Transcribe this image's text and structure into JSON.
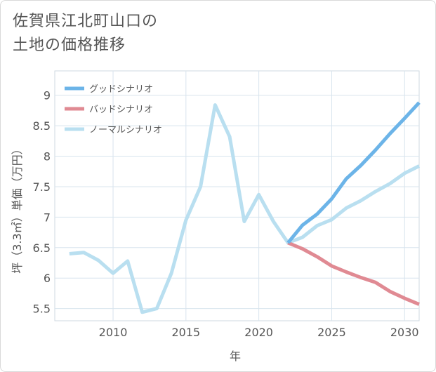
{
  "title": "佐賀県江北町山口の\n土地の価格推移",
  "chart_data": {
    "type": "line",
    "xlabel": "年",
    "ylabel": "坪（3.3㎡）単価（万円）",
    "xlim": [
      2006,
      2031
    ],
    "ylim": [
      5.3,
      9.4
    ],
    "xticks": [
      2010,
      2015,
      2020,
      2025,
      2030
    ],
    "yticks": [
      5.5,
      6,
      6.5,
      7,
      7.5,
      8,
      8.5,
      9
    ],
    "grid": true,
    "legend_position": "top-left",
    "series": [
      {
        "name": "グッドシナリオ",
        "color": "#6cb4e8",
        "points": [
          [
            2022,
            6.58
          ],
          [
            2023,
            6.87
          ],
          [
            2024,
            7.05
          ],
          [
            2025,
            7.3
          ],
          [
            2026,
            7.63
          ],
          [
            2027,
            7.85
          ],
          [
            2028,
            8.1
          ],
          [
            2029,
            8.37
          ],
          [
            2030,
            8.62
          ],
          [
            2031,
            8.88
          ]
        ]
      },
      {
        "name": "バッドシナリオ",
        "color": "#e08a93",
        "points": [
          [
            2022,
            6.58
          ],
          [
            2023,
            6.48
          ],
          [
            2024,
            6.35
          ],
          [
            2025,
            6.2
          ],
          [
            2026,
            6.1
          ],
          [
            2027,
            6.01
          ],
          [
            2028,
            5.93
          ],
          [
            2029,
            5.78
          ],
          [
            2030,
            5.67
          ],
          [
            2031,
            5.57
          ]
        ]
      },
      {
        "name": "ノーマルシナリオ",
        "color": "#b9dff0",
        "points": [
          [
            2007,
            6.4
          ],
          [
            2008,
            6.42
          ],
          [
            2009,
            6.29
          ],
          [
            2010,
            6.08
          ],
          [
            2011,
            6.28
          ],
          [
            2012,
            5.44
          ],
          [
            2013,
            5.5
          ],
          [
            2014,
            6.08
          ],
          [
            2015,
            6.95
          ],
          [
            2016,
            7.5
          ],
          [
            2017,
            8.84
          ],
          [
            2018,
            8.32
          ],
          [
            2019,
            6.93
          ],
          [
            2020,
            7.37
          ],
          [
            2021,
            6.93
          ],
          [
            2022,
            6.58
          ],
          [
            2023,
            6.67
          ],
          [
            2024,
            6.86
          ],
          [
            2025,
            6.96
          ],
          [
            2026,
            7.15
          ],
          [
            2027,
            7.27
          ],
          [
            2028,
            7.42
          ],
          [
            2029,
            7.55
          ],
          [
            2030,
            7.72
          ],
          [
            2031,
            7.84
          ]
        ]
      }
    ]
  }
}
